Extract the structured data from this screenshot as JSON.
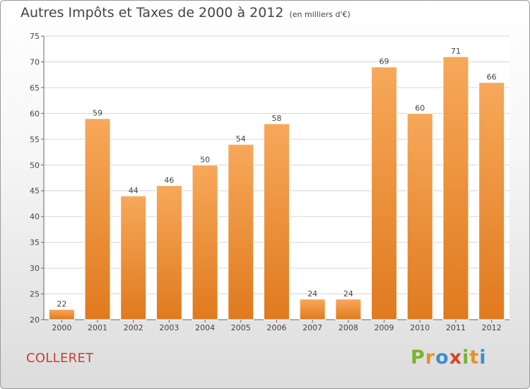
{
  "chart_data": {
    "type": "bar",
    "title": "Autres Impôts et Taxes de 2000 à 2012",
    "unit_label": "(en milliers d'€)",
    "categories": [
      "2000",
      "2001",
      "2002",
      "2003",
      "2004",
      "2005",
      "2006",
      "2007",
      "2008",
      "2009",
      "2010",
      "2011",
      "2012"
    ],
    "values": [
      22,
      59,
      44,
      46,
      50,
      54,
      58,
      24,
      24,
      69,
      60,
      71,
      66
    ],
    "ylim": [
      20,
      75
    ],
    "yticks": [
      20,
      25,
      30,
      35,
      40,
      45,
      50,
      55,
      60,
      65,
      70,
      75
    ],
    "grid": true,
    "bar_color": "#f0923a"
  },
  "commune": "COLLERET",
  "brand": {
    "letters": [
      "P",
      "r",
      "o",
      "x",
      "i",
      "t",
      "i"
    ],
    "colors": [
      "#7ab32e",
      "#e8902a",
      "#3b8fd0",
      "#d9442b",
      "#7ab32e",
      "#e8902a",
      "#3b8fd0"
    ]
  }
}
